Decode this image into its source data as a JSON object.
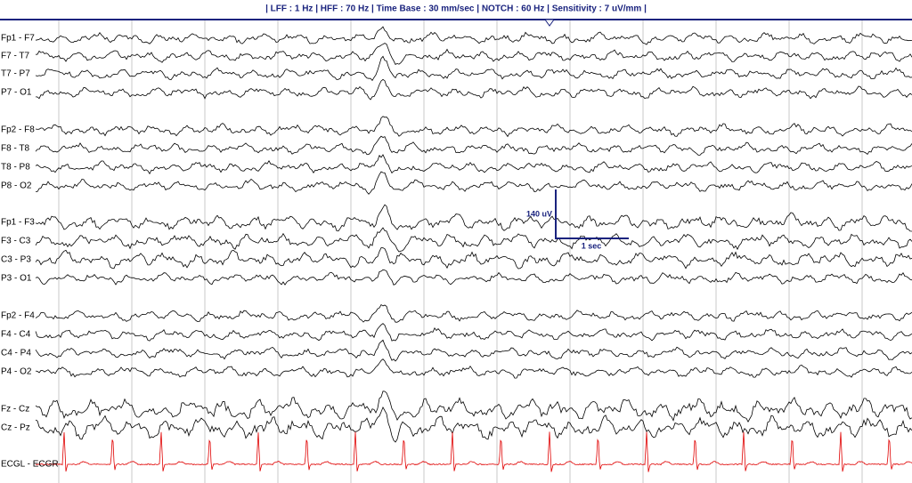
{
  "header": "| LFF : 1 Hz | HFF : 70 Hz | Time Base  : 30 mm/sec | NOTCH : 60 Hz | Sensitivity : 7 uV/mm |",
  "channels": [
    "Fp1 - F7",
    "F7 - T7",
    "T7 - P7",
    "P7 - O1",
    "Fp2 - F8",
    "F8 - T8",
    "T8 - P8",
    "P8 - O2",
    "Fp1 - F3",
    "F3 - C3",
    "C3 - P3",
    "P3 - O1",
    "Fp2 - F4",
    "F4 - C4",
    "C4 - P4",
    "P4 - O2",
    "Fz - Cz",
    "Cz - Pz",
    "ECGL - ECGR"
  ],
  "calibration": {
    "amplitude": "140 uV",
    "time": "1 sec"
  }
}
